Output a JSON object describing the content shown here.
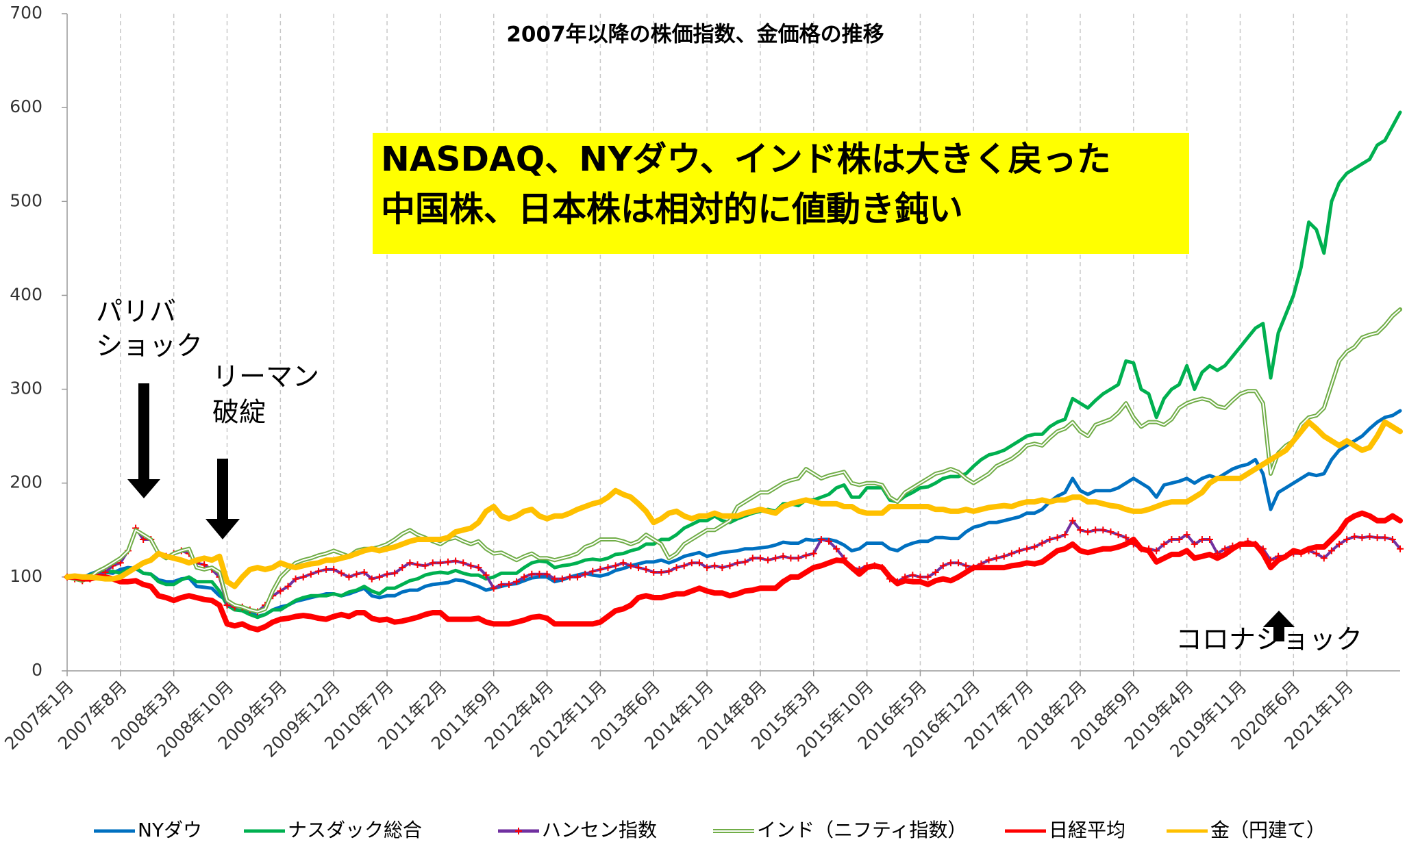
{
  "chart_data": {
    "type": "line",
    "title": "2007年以降の株価指数、金価格の推移",
    "highlight": [
      "NASDAQ、NYダウ、インド株は大きく戻った",
      "中国株、日本株は相対的に値動き鈍い"
    ],
    "highlight_color": "#ffff00",
    "annotations": [
      "パリバ",
      "ショック",
      "リーマン",
      "破綻",
      "コロナショック"
    ],
    "ylim": [
      0,
      700
    ],
    "yticks": [
      0,
      100,
      200,
      300,
      400,
      500,
      600,
      700
    ],
    "grid": true,
    "categories": [
      "2007年1月",
      null,
      null,
      null,
      null,
      null,
      null,
      "2007年8月",
      null,
      null,
      null,
      null,
      null,
      null,
      "2008年3月",
      null,
      null,
      null,
      null,
      null,
      null,
      "2008年10月",
      null,
      null,
      null,
      null,
      null,
      null,
      "2009年5月",
      null,
      null,
      null,
      null,
      null,
      null,
      "2009年12月",
      null,
      null,
      null,
      null,
      null,
      null,
      "2010年7月",
      null,
      null,
      null,
      null,
      null,
      null,
      "2011年2月",
      null,
      null,
      null,
      null,
      null,
      null,
      "2011年9月",
      null,
      null,
      null,
      null,
      null,
      null,
      "2012年4月",
      null,
      null,
      null,
      null,
      null,
      null,
      "2012年11月",
      null,
      null,
      null,
      null,
      null,
      null,
      "2013年6月",
      null,
      null,
      null,
      null,
      null,
      null,
      "2014年1月",
      null,
      null,
      null,
      null,
      null,
      null,
      "2014年8月",
      null,
      null,
      null,
      null,
      null,
      null,
      "2015年3月",
      null,
      null,
      null,
      null,
      null,
      null,
      "2015年10月",
      null,
      null,
      null,
      null,
      null,
      null,
      "2016年5月",
      null,
      null,
      null,
      null,
      null,
      null,
      "2016年12月",
      null,
      null,
      null,
      null,
      null,
      null,
      "2017年7月",
      null,
      null,
      null,
      null,
      null,
      null,
      "2018年2月",
      null,
      null,
      null,
      null,
      null,
      null,
      "2018年9月",
      null,
      null,
      null,
      null,
      null,
      null,
      "2019年4月",
      null,
      null,
      null,
      null,
      null,
      null,
      "2019年11月",
      null,
      null,
      null,
      null,
      null,
      null,
      "2020年6月",
      null,
      null,
      null,
      null,
      null,
      null,
      "2021年1月",
      null,
      null,
      null,
      null,
      null,
      null,
      null
    ],
    "series": [
      {
        "name": "NYダウ",
        "color": "#0070c0",
        "line_width": 5,
        "values": [
          100,
          98,
          99,
          103,
          106,
          105,
          104,
          108,
          110,
          109,
          104,
          103,
          97,
          95,
          95,
          98,
          99,
          90,
          89,
          88,
          80,
          75,
          70,
          68,
          63,
          58,
          60,
          65,
          68,
          70,
          74,
          76,
          78,
          80,
          82,
          82,
          80,
          82,
          85,
          88,
          80,
          78,
          80,
          80,
          84,
          86,
          86,
          90,
          92,
          93,
          94,
          97,
          96,
          93,
          90,
          86,
          88,
          90,
          92,
          93,
          96,
          99,
          100,
          100,
          95,
          97,
          100,
          102,
          104,
          102,
          101,
          103,
          107,
          109,
          112,
          114,
          116,
          116,
          118,
          115,
          118,
          122,
          124,
          126,
          122,
          124,
          126,
          127,
          128,
          130,
          130,
          131,
          132,
          134,
          137,
          136,
          136,
          140,
          139,
          140,
          140,
          138,
          134,
          128,
          130,
          136,
          136,
          136,
          130,
          128,
          133,
          136,
          138,
          138,
          142,
          142,
          141,
          141,
          148,
          153,
          155,
          158,
          158,
          160,
          162,
          164,
          168,
          168,
          172,
          180,
          186,
          190,
          205,
          192,
          188,
          192,
          192,
          192,
          195,
          200,
          205,
          200,
          195,
          185,
          198,
          200,
          202,
          205,
          200,
          205,
          208,
          205,
          210,
          215,
          218,
          220,
          225,
          210,
          172,
          190,
          195,
          200,
          205,
          210,
          208,
          210,
          225,
          235,
          240,
          245,
          250,
          258,
          265,
          270,
          272,
          277
        ]
      },
      {
        "name": "ナスダック総合",
        "color": "#00b050",
        "line_width": 5,
        "values": [
          100,
          99,
          98,
          102,
          105,
          105,
          106,
          104,
          108,
          110,
          104,
          103,
          95,
          92,
          92,
          97,
          100,
          95,
          95,
          95,
          85,
          70,
          65,
          64,
          60,
          57,
          60,
          65,
          65,
          70,
          75,
          78,
          80,
          80,
          80,
          82,
          80,
          84,
          86,
          90,
          85,
          82,
          88,
          88,
          92,
          96,
          98,
          102,
          104,
          105,
          104,
          107,
          104,
          102,
          102,
          98,
          100,
          104,
          104,
          104,
          110,
          115,
          117,
          116,
          110,
          112,
          113,
          115,
          118,
          119,
          118,
          120,
          124,
          125,
          128,
          130,
          135,
          135,
          140,
          140,
          145,
          152,
          156,
          160,
          160,
          165,
          160,
          158,
          162,
          165,
          168,
          170,
          172,
          170,
          178,
          178,
          176,
          182,
          182,
          185,
          188,
          195,
          198,
          185,
          185,
          195,
          195,
          195,
          182,
          180,
          186,
          190,
          195,
          196,
          200,
          205,
          207,
          207,
          210,
          218,
          225,
          230,
          232,
          235,
          240,
          245,
          250,
          252,
          252,
          260,
          265,
          268,
          290,
          285,
          280,
          288,
          295,
          300,
          305,
          330,
          328,
          300,
          295,
          270,
          290,
          300,
          305,
          325,
          300,
          318,
          325,
          320,
          325,
          335,
          345,
          355,
          365,
          370,
          312,
          360,
          380,
          400,
          430,
          478,
          470,
          445,
          500,
          520,
          530,
          535,
          540,
          545,
          560,
          565,
          580,
          595
        ]
      },
      {
        "name": "ハンセン指数",
        "color": "#7030a0",
        "marker": "+",
        "marker_color": "#ff0000",
        "line_width": 4,
        "values": [
          100,
          98,
          96,
          98,
          102,
          105,
          112,
          115,
          128,
          152,
          140,
          140,
          125,
          122,
          125,
          128,
          125,
          115,
          113,
          108,
          100,
          70,
          68,
          68,
          65,
          63,
          70,
          80,
          85,
          90,
          98,
          100,
          103,
          106,
          108,
          108,
          104,
          100,
          103,
          105,
          98,
          100,
          103,
          104,
          110,
          115,
          113,
          112,
          115,
          115,
          116,
          117,
          115,
          112,
          110,
          102,
          88,
          92,
          92,
          95,
          100,
          103,
          103,
          103,
          98,
          98,
          100,
          100,
          103,
          106,
          108,
          110,
          112,
          115,
          112,
          110,
          108,
          105,
          105,
          106,
          110,
          112,
          115,
          115,
          110,
          112,
          110,
          112,
          115,
          116,
          120,
          120,
          118,
          120,
          122,
          120,
          120,
          123,
          125,
          140,
          138,
          130,
          120,
          110,
          108,
          112,
          112,
          110,
          98,
          95,
          100,
          102,
          100,
          100,
          105,
          112,
          115,
          115,
          112,
          110,
          114,
          118,
          120,
          122,
          125,
          128,
          130,
          132,
          136,
          140,
          142,
          145,
          160,
          150,
          148,
          150,
          150,
          148,
          145,
          142,
          135,
          130,
          130,
          128,
          135,
          140,
          140,
          145,
          135,
          140,
          140,
          125,
          130,
          133,
          133,
          138,
          135,
          130,
          118,
          122,
          122,
          125,
          125,
          128,
          125,
          120,
          128,
          135,
          140,
          143,
          142,
          143,
          142,
          142,
          140,
          130
        ]
      },
      {
        "name": "インド（ニフティ指数）",
        "color": "#70ad47",
        "double": true,
        "line_width": 6,
        "values": [
          100,
          98,
          96,
          100,
          106,
          110,
          115,
          120,
          128,
          150,
          145,
          140,
          125,
          120,
          125,
          128,
          130,
          110,
          108,
          110,
          105,
          75,
          70,
          68,
          65,
          63,
          66,
          85,
          100,
          108,
          115,
          118,
          120,
          123,
          125,
          128,
          125,
          122,
          128,
          130,
          130,
          132,
          135,
          140,
          146,
          150,
          145,
          142,
          138,
          135,
          140,
          142,
          138,
          135,
          138,
          130,
          125,
          126,
          122,
          118,
          122,
          125,
          120,
          120,
          118,
          120,
          122,
          125,
          132,
          135,
          140,
          140,
          140,
          138,
          135,
          138,
          145,
          140,
          135,
          120,
          125,
          135,
          140,
          145,
          150,
          150,
          155,
          160,
          175,
          180,
          185,
          190,
          190,
          195,
          200,
          203,
          205,
          215,
          210,
          205,
          208,
          210,
          212,
          200,
          198,
          200,
          200,
          198,
          185,
          180,
          190,
          195,
          200,
          205,
          210,
          212,
          215,
          212,
          205,
          200,
          205,
          210,
          218,
          222,
          226,
          232,
          240,
          242,
          240,
          248,
          255,
          258,
          265,
          255,
          250,
          262,
          265,
          268,
          275,
          285,
          270,
          260,
          265,
          265,
          262,
          268,
          280,
          285,
          288,
          290,
          288,
          282,
          280,
          288,
          295,
          298,
          298,
          285,
          210,
          232,
          240,
          245,
          262,
          270,
          272,
          280,
          305,
          330,
          340,
          345,
          355,
          358,
          360,
          368,
          378,
          385
        ]
      },
      {
        "name": "日経平均",
        "color": "#ff0000",
        "line_width": 8,
        "values": [
          100,
          100,
          98,
          98,
          100,
          100,
          98,
          95,
          95,
          96,
          92,
          90,
          80,
          78,
          75,
          78,
          80,
          78,
          76,
          75,
          70,
          50,
          48,
          50,
          46,
          44,
          47,
          52,
          55,
          56,
          58,
          59,
          58,
          56,
          55,
          58,
          60,
          58,
          62,
          62,
          56,
          54,
          55,
          52,
          53,
          55,
          57,
          60,
          62,
          62,
          55,
          55,
          55,
          55,
          56,
          52,
          50,
          50,
          50,
          52,
          54,
          57,
          58,
          56,
          50,
          50,
          50,
          50,
          50,
          50,
          52,
          58,
          64,
          66,
          70,
          78,
          80,
          78,
          78,
          80,
          82,
          82,
          85,
          88,
          85,
          83,
          83,
          80,
          82,
          85,
          86,
          88,
          88,
          88,
          95,
          100,
          100,
          105,
          110,
          112,
          115,
          118,
          117,
          110,
          103,
          110,
          112,
          110,
          100,
          93,
          96,
          95,
          95,
          92,
          96,
          98,
          96,
          100,
          105,
          110,
          110,
          110,
          110,
          110,
          112,
          113,
          115,
          114,
          116,
          122,
          128,
          130,
          135,
          128,
          126,
          128,
          130,
          130,
          132,
          135,
          140,
          130,
          128,
          116,
          120,
          124,
          124,
          128,
          120,
          122,
          124,
          120,
          124,
          130,
          135,
          135,
          135,
          125,
          110,
          118,
          122,
          128,
          126,
          130,
          132,
          132,
          140,
          148,
          160,
          165,
          168,
          165,
          160,
          160,
          165,
          160
        ]
      },
      {
        "name": "金（円建て）",
        "color": "#ffc000",
        "line_width": 8,
        "values": [
          100,
          101,
          100,
          100,
          99,
          98,
          98,
          100,
          105,
          110,
          115,
          118,
          125,
          122,
          120,
          118,
          115,
          118,
          120,
          118,
          122,
          95,
          90,
          100,
          108,
          110,
          108,
          110,
          115,
          112,
          110,
          112,
          114,
          115,
          118,
          118,
          120,
          122,
          125,
          128,
          130,
          128,
          130,
          132,
          135,
          138,
          140,
          140,
          140,
          140,
          142,
          148,
          150,
          152,
          158,
          170,
          175,
          165,
          162,
          165,
          170,
          172,
          165,
          162,
          165,
          165,
          168,
          172,
          175,
          178,
          180,
          185,
          192,
          188,
          185,
          178,
          170,
          158,
          162,
          168,
          170,
          165,
          162,
          165,
          165,
          168,
          165,
          165,
          165,
          168,
          170,
          172,
          170,
          168,
          175,
          178,
          180,
          182,
          180,
          178,
          178,
          178,
          175,
          175,
          170,
          168,
          168,
          168,
          175,
          175,
          175,
          175,
          175,
          175,
          172,
          172,
          170,
          170,
          172,
          170,
          172,
          174,
          175,
          176,
          175,
          178,
          180,
          180,
          182,
          180,
          182,
          182,
          185,
          185,
          180,
          180,
          178,
          176,
          175,
          172,
          170,
          170,
          172,
          175,
          178,
          180,
          180,
          180,
          185,
          190,
          200,
          205,
          205,
          205,
          205,
          210,
          215,
          220,
          225,
          230,
          235,
          245,
          255,
          265,
          258,
          250,
          245,
          240,
          245,
          240,
          235,
          238,
          250,
          265,
          260,
          255
        ]
      }
    ]
  }
}
